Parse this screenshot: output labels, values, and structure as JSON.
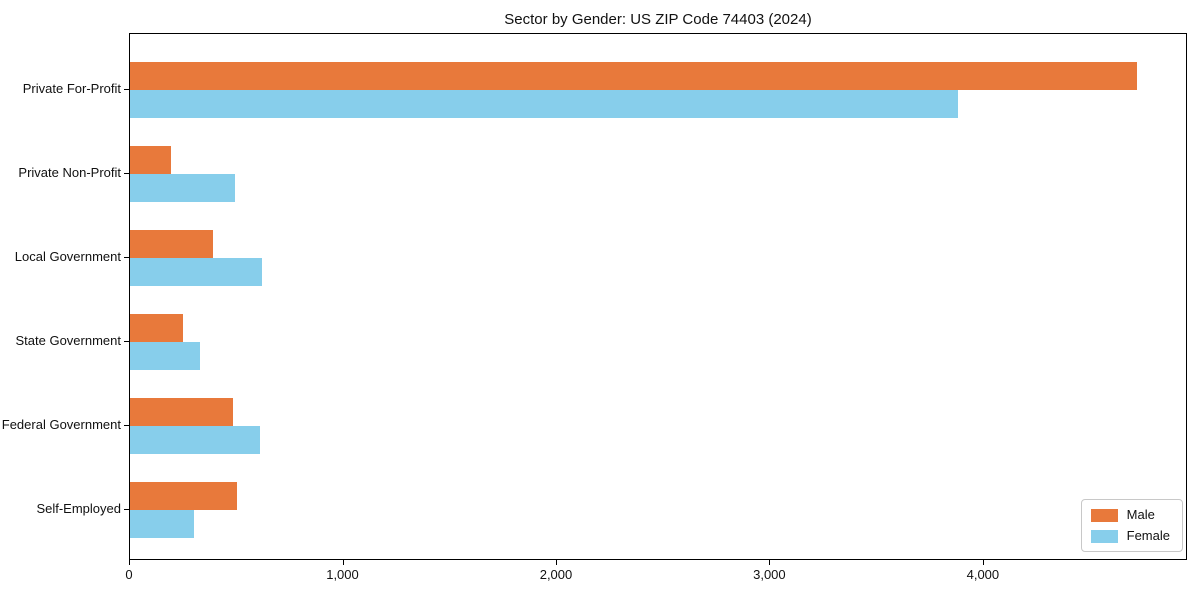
{
  "title": "Sector by Gender: US ZIP Code 74403 (2024)",
  "colors": {
    "male_bar": "#e8793b",
    "female_bar": "#87ceeb",
    "axis": "#000000",
    "legend_border": "#c8c8c8",
    "background": "#ffffff",
    "text": "#111111"
  },
  "legend": {
    "position": "lower right",
    "entries": [
      "Male",
      "Female"
    ]
  },
  "chart_data": {
    "type": "bar",
    "orientation": "horizontal",
    "title": "Sector by Gender: US ZIP Code 74403 (2024)",
    "categories": [
      "Private For-Profit",
      "Private Non-Profit",
      "Local Government",
      "State Government",
      "Federal Government",
      "Self-Employed"
    ],
    "series": [
      {
        "name": "Male",
        "color": "#e8793b",
        "values": [
          4715,
          190,
          390,
          250,
          480,
          500
        ]
      },
      {
        "name": "Female",
        "color": "#87ceeb",
        "values": [
          3880,
          490,
          620,
          330,
          610,
          300
        ]
      }
    ],
    "xlabel": "",
    "ylabel": "",
    "xlim": [
      0,
      4956
    ],
    "x_ticks": [
      0,
      1000,
      2000,
      3000,
      4000
    ],
    "x_tick_labels": [
      "0",
      "1,000",
      "2,000",
      "3,000",
      "4,000"
    ],
    "grid": false,
    "legend_position": "lower right"
  }
}
